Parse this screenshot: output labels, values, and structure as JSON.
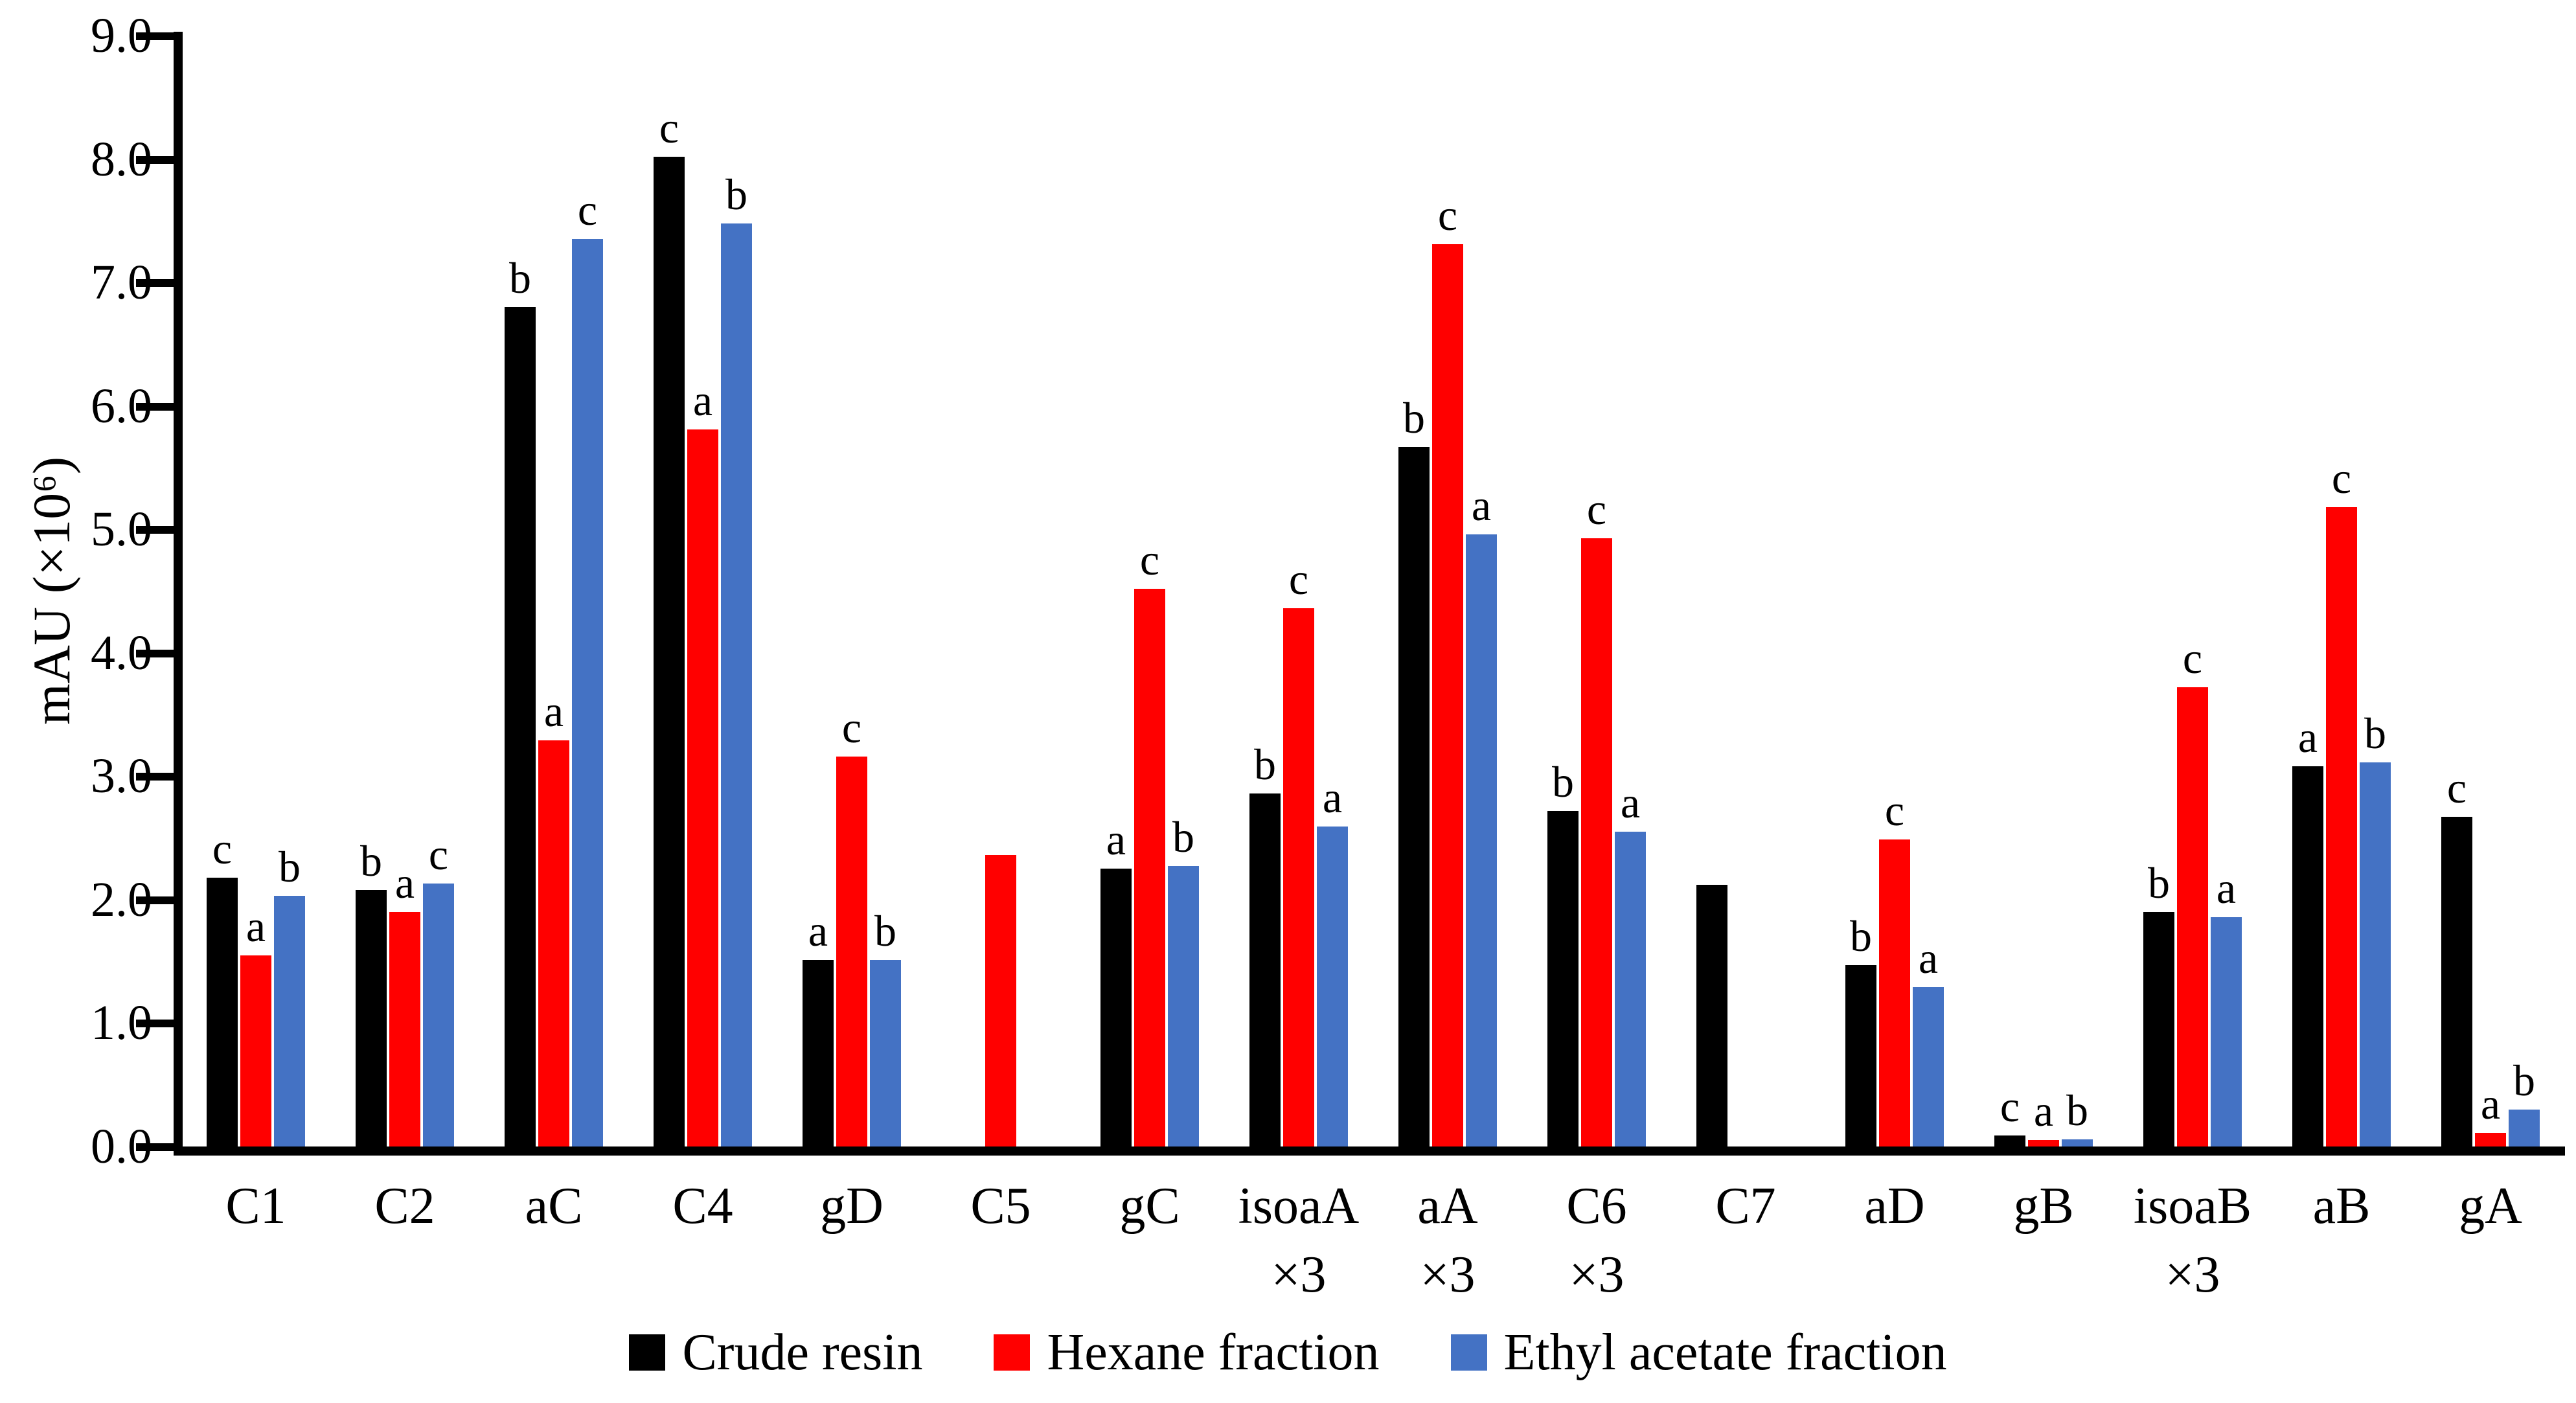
{
  "chart_data": {
    "type": "bar",
    "title": "",
    "y_axis": {
      "label": "mAU (×10⁶)",
      "min": 0,
      "max": 9,
      "step": 1,
      "tick_labels": [
        "0.0",
        "1.0",
        "2.0",
        "3.0",
        "4.0",
        "5.0",
        "6.0",
        "7.0",
        "8.0",
        "9.0"
      ]
    },
    "grid": false,
    "legend_position": "bottom",
    "categories": [
      {
        "label": "C1",
        "sublabel": ""
      },
      {
        "label": "C2",
        "sublabel": ""
      },
      {
        "label": "aC",
        "sublabel": ""
      },
      {
        "label": "C4",
        "sublabel": ""
      },
      {
        "label": "gD",
        "sublabel": ""
      },
      {
        "label": "C5",
        "sublabel": ""
      },
      {
        "label": "gC",
        "sublabel": ""
      },
      {
        "label": "isoaA",
        "sublabel": "×3"
      },
      {
        "label": "aA",
        "sublabel": "×3"
      },
      {
        "label": "C6",
        "sublabel": "×3"
      },
      {
        "label": "C7",
        "sublabel": ""
      },
      {
        "label": "aD",
        "sublabel": ""
      },
      {
        "label": "gB",
        "sublabel": ""
      },
      {
        "label": "isoaB",
        "sublabel": "×3"
      },
      {
        "label": "aB",
        "sublabel": ""
      },
      {
        "label": "gA",
        "sublabel": ""
      }
    ],
    "series": [
      {
        "name": "Crude resin",
        "color": "#000000",
        "values": [
          2.18,
          2.08,
          6.8,
          8.02,
          1.51,
          null,
          2.25,
          2.86,
          5.67,
          2.72,
          2.12,
          1.47,
          0.09,
          1.9,
          3.08,
          2.67
        ],
        "letters": [
          "c",
          "b",
          "b",
          "c",
          "a",
          "",
          "a",
          "b",
          "b",
          "b",
          "",
          "b",
          "c",
          "b",
          "a",
          "c"
        ]
      },
      {
        "name": "Hexane fraction",
        "color": "#FF0000",
        "values": [
          1.55,
          1.9,
          3.29,
          5.81,
          3.16,
          2.36,
          4.52,
          4.36,
          7.31,
          4.93,
          null,
          2.49,
          0.05,
          3.72,
          5.18,
          0.11
        ],
        "letters": [
          "a",
          "a",
          "a",
          "a",
          "c",
          "",
          "c",
          "c",
          "c",
          "c",
          "",
          "c",
          "a",
          "c",
          "c",
          "a"
        ]
      },
      {
        "name": "Ethyl acetate fraction",
        "color": "#4472C4",
        "values": [
          2.03,
          2.13,
          7.35,
          7.48,
          1.51,
          null,
          2.27,
          2.59,
          4.96,
          2.55,
          null,
          1.29,
          0.06,
          1.86,
          3.11,
          0.3
        ],
        "letters": [
          "b",
          "c",
          "c",
          "b",
          "b",
          "",
          "b",
          "a",
          "a",
          "a",
          "",
          "a",
          "b",
          "a",
          "b",
          "b"
        ]
      }
    ]
  }
}
